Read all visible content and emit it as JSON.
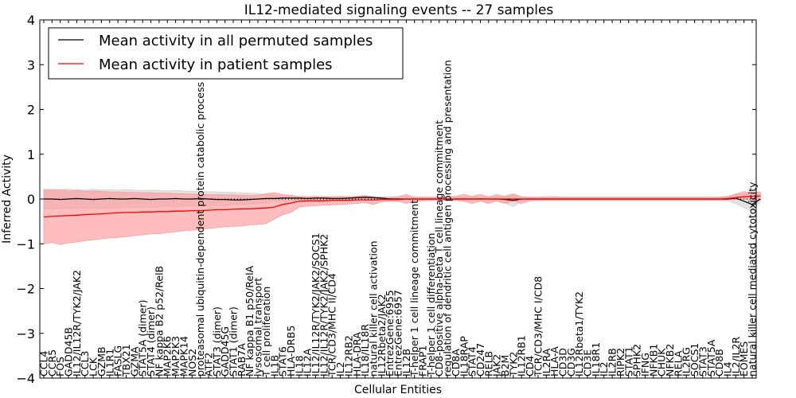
{
  "chart_data": {
    "type": "line",
    "title": "IL12-mediated signaling events -- 27 samples",
    "xlabel": "Cellular Entities",
    "ylabel": "Inferred Activity",
    "ylim": [
      -4,
      4
    ],
    "yticks": [
      -4,
      -3,
      -2,
      -1,
      0,
      1,
      2,
      3,
      4
    ],
    "ytick_labels": [
      "−4",
      "−3",
      "−2",
      "−1",
      "0",
      "1",
      "2",
      "3",
      "4"
    ],
    "grid": false,
    "legend_placement": "top-left",
    "zero_line": {
      "style": "dotted",
      "value": 0
    },
    "categories": [
      "CCL4",
      "CCR5",
      "FOS",
      "GADD45B",
      "IL12/IL12R/TYK2/JAK2",
      "CCL3",
      "LCK",
      "GZMB",
      "IL1R1",
      "FASLG",
      "TBX21",
      "GZMA",
      "STAT5A (dimer)",
      "STAT4 (dimer)",
      "NF kappa B2 p52/RelB",
      "MAP2K6",
      "MAP2K3",
      "MAPK14",
      "NOS2",
      "proteasomal ubiquitin-dependent protein catabolic process",
      "ATF2",
      "STAT3 (dimer)",
      "GADD45G",
      "STAT1 (dimer)",
      "RAB7A",
      "NF kappa B1 p50/RelA",
      "lysosomal transport",
      "T cell proliferation",
      "IL1B",
      "STAT6",
      "HLA-DRB5",
      "IL18",
      "IL12A",
      "IL12/IL12R/TYK2/JAK2/SOCS1",
      "IL12/IL12R/TYK2/JAK2/SPHK2",
      "TCR/CD3/MHC II/CD4",
      "IL2",
      "IL12RB2",
      "HLA-DRA",
      "IL18/IL18R",
      "natural killer cell activation",
      "IL12Rbeta2/JAK2",
      "EntrezGene:6955",
      "EntrezGene:6957",
      "IL12B",
      "T-helper 1 cell lineage commitment",
      "FRAP1",
      "T-helper 1 cell differentiation",
      "CD8-positive alpha-beta T cell lineage commitment",
      "regulation of dendritic cell antigen processing and presentation",
      "CD8A",
      "IL18RAP",
      "STAT4",
      "CD247",
      "RELB",
      "JAK2",
      "B2M",
      "TYK2",
      "IL12RB1",
      "CD4",
      "TCR/CD3/MHC I/CD8",
      "IL2RA",
      "HLA-A",
      "CD3D",
      "CD3G",
      "IL12Rbeta1/TYK2",
      "CD3E",
      "IL18R1",
      "IL2",
      "IL2RB",
      "RIPK2",
      "STAT1",
      "SPHK2",
      "IFNG",
      "NFKB1",
      "CHUK",
      "NFKB2",
      "RELA",
      "IL2RG",
      "SOCS1",
      "STAT3",
      "STAT5A",
      "CD8B",
      "IL4",
      "IL2/IL2R",
      "EOMES",
      "natural killer cell mediated cytotoxicity"
    ],
    "series": [
      {
        "name": "Mean activity in all permuted samples",
        "color": "#000000",
        "band_color": "#d3d3d3",
        "values": [
          0.0,
          0.0,
          -0.01,
          0.0,
          0.01,
          0.0,
          -0.01,
          0.0,
          0.01,
          0.0,
          0.0,
          0.01,
          0.0,
          -0.01,
          0.0,
          0.0,
          0.01,
          0.0,
          0.0,
          0.01,
          0.0,
          -0.01,
          -0.01,
          -0.02,
          -0.02,
          -0.01,
          0.0,
          0.01,
          0.01,
          0.02,
          0.02,
          0.02,
          0.01,
          0.02,
          0.02,
          0.01,
          0.01,
          0.02,
          0.03,
          0.04,
          0.03,
          0.02,
          0.0,
          0.0,
          0.0,
          0.0,
          0.0,
          0.0,
          0.0,
          0.0,
          0.0,
          0.0,
          0.0,
          0.0,
          0.0,
          0.0,
          -0.01,
          -0.03,
          0.0,
          0.0,
          0.0,
          0.0,
          0.0,
          0.0,
          0.0,
          0.0,
          0.0,
          0.0,
          0.0,
          0.0,
          0.0,
          0.0,
          0.0,
          0.0,
          0.0,
          0.0,
          0.0,
          0.0,
          0.0,
          0.0,
          0.0,
          0.0,
          0.0,
          0.0,
          0.02,
          -0.05,
          -0.12,
          0.0
        ],
        "band_low": [
          -0.22,
          -0.22,
          -0.22,
          -0.21,
          -0.2,
          -0.22,
          -0.2,
          -0.21,
          -0.2,
          -0.2,
          -0.19,
          -0.19,
          -0.18,
          -0.19,
          -0.18,
          -0.17,
          -0.17,
          -0.16,
          -0.16,
          -0.15,
          -0.15,
          -0.14,
          -0.14,
          -0.13,
          -0.12,
          -0.11,
          -0.1,
          -0.08,
          -0.05,
          -0.04,
          -0.04,
          -0.03,
          -0.03,
          -0.03,
          -0.03,
          -0.03,
          -0.03,
          -0.03,
          -0.03,
          -0.03,
          -0.03,
          -0.03,
          -0.03,
          -0.03,
          -0.03,
          -0.03,
          -0.03,
          -0.03,
          -0.03,
          -0.03,
          -0.03,
          -0.03,
          -0.03,
          -0.03,
          -0.03,
          -0.05,
          -0.09,
          -0.17,
          -0.05,
          -0.03,
          -0.03,
          -0.03,
          -0.03,
          -0.03,
          -0.03,
          -0.03,
          -0.03,
          -0.03,
          -0.03,
          -0.03,
          -0.03,
          -0.03,
          -0.03,
          -0.03,
          -0.03,
          -0.03,
          -0.03,
          -0.03,
          -0.03,
          -0.03,
          -0.03,
          -0.03,
          -0.03,
          -0.04,
          -0.1,
          -0.2,
          -0.28,
          -0.05
        ],
        "band_high": [
          0.22,
          0.22,
          0.21,
          0.22,
          0.21,
          0.2,
          0.22,
          0.2,
          0.21,
          0.2,
          0.21,
          0.2,
          0.19,
          0.2,
          0.19,
          0.18,
          0.19,
          0.18,
          0.17,
          0.17,
          0.16,
          0.16,
          0.15,
          0.15,
          0.14,
          0.13,
          0.12,
          0.1,
          0.08,
          0.06,
          0.06,
          0.05,
          0.05,
          0.05,
          0.05,
          0.05,
          0.05,
          0.05,
          0.06,
          0.07,
          0.06,
          0.05,
          0.04,
          0.04,
          0.04,
          0.04,
          0.04,
          0.04,
          0.04,
          0.04,
          0.04,
          0.04,
          0.04,
          0.04,
          0.04,
          0.05,
          0.08,
          0.12,
          0.06,
          0.04,
          0.04,
          0.05,
          0.06,
          0.04,
          0.04,
          0.04,
          0.04,
          0.04,
          0.04,
          0.04,
          0.04,
          0.04,
          0.04,
          0.04,
          0.04,
          0.04,
          0.04,
          0.04,
          0.04,
          0.04,
          0.04,
          0.04,
          0.04,
          0.05,
          0.12,
          0.18,
          0.12,
          0.06
        ]
      },
      {
        "name": "Mean activity in patient samples",
        "color": "#ff0000",
        "band_color": "#ff9a9a",
        "values": [
          -0.4,
          -0.39,
          -0.38,
          -0.37,
          -0.36,
          -0.35,
          -0.34,
          -0.33,
          -0.32,
          -0.31,
          -0.3,
          -0.3,
          -0.29,
          -0.29,
          -0.28,
          -0.28,
          -0.27,
          -0.27,
          -0.26,
          -0.26,
          -0.25,
          -0.24,
          -0.24,
          -0.23,
          -0.22,
          -0.22,
          -0.21,
          -0.2,
          -0.18,
          -0.12,
          -0.09,
          -0.05,
          -0.04,
          -0.04,
          -0.04,
          -0.03,
          -0.03,
          -0.03,
          -0.02,
          -0.02,
          -0.02,
          -0.01,
          -0.01,
          -0.01,
          0.0,
          0.0,
          0.0,
          0.0,
          0.0,
          0.0,
          0.0,
          0.0,
          0.0,
          0.0,
          0.0,
          0.0,
          0.0,
          0.0,
          0.0,
          0.0,
          0.0,
          0.0,
          0.0,
          0.0,
          0.0,
          0.0,
          0.0,
          0.0,
          0.0,
          0.0,
          0.0,
          0.0,
          0.0,
          0.0,
          0.0,
          0.0,
          0.0,
          0.0,
          0.0,
          0.0,
          0.0,
          0.0,
          0.0,
          0.01,
          0.03,
          0.05,
          0.06,
          0.07
        ],
        "band_low": [
          -1.0,
          -0.97,
          -1.02,
          -0.98,
          -0.96,
          -0.93,
          -0.91,
          -0.89,
          -0.87,
          -0.86,
          -0.84,
          -0.82,
          -0.8,
          -0.78,
          -0.77,
          -0.75,
          -0.73,
          -0.71,
          -0.7,
          -0.68,
          -0.66,
          -0.64,
          -0.62,
          -0.61,
          -0.6,
          -0.58,
          -0.57,
          -0.55,
          -0.45,
          -0.35,
          -0.3,
          -0.18,
          -0.16,
          -0.15,
          -0.14,
          -0.13,
          -0.12,
          -0.11,
          -0.1,
          -0.08,
          -0.12,
          -0.06,
          -0.05,
          -0.05,
          -0.1,
          -0.05,
          -0.04,
          -0.03,
          -0.03,
          -0.03,
          -0.03,
          -0.05,
          -0.1,
          -0.05,
          -0.1,
          -0.04,
          -0.1,
          -0.05,
          -0.1,
          -0.04,
          -0.03,
          -0.03,
          -0.03,
          -0.03,
          -0.03,
          -0.03,
          -0.03,
          -0.03,
          -0.03,
          -0.03,
          -0.03,
          -0.03,
          -0.03,
          -0.03,
          -0.03,
          -0.03,
          -0.03,
          -0.03,
          -0.03,
          -0.03,
          -0.03,
          -0.03,
          -0.03,
          -0.02,
          -0.01,
          0.0,
          -0.02,
          -0.02
        ],
        "band_high": [
          0.2,
          0.19,
          0.21,
          0.18,
          0.19,
          0.17,
          0.18,
          0.17,
          0.16,
          0.16,
          0.15,
          0.15,
          0.14,
          0.14,
          0.13,
          0.13,
          0.12,
          0.12,
          0.11,
          0.11,
          0.1,
          0.1,
          0.09,
          0.09,
          0.08,
          0.08,
          0.08,
          0.12,
          0.14,
          0.1,
          0.08,
          0.06,
          0.05,
          0.06,
          0.05,
          0.05,
          0.06,
          0.05,
          0.06,
          0.08,
          0.04,
          0.03,
          0.04,
          0.05,
          0.1,
          0.04,
          0.04,
          0.04,
          0.04,
          0.05,
          0.06,
          0.1,
          0.06,
          0.1,
          0.05,
          0.1,
          0.05,
          0.1,
          0.04,
          0.04,
          0.04,
          0.04,
          0.04,
          0.04,
          0.04,
          0.04,
          0.04,
          0.04,
          0.04,
          0.04,
          0.04,
          0.04,
          0.04,
          0.04,
          0.04,
          0.04,
          0.04,
          0.04,
          0.04,
          0.04,
          0.04,
          0.04,
          0.04,
          0.06,
          0.1,
          0.14,
          0.16,
          0.15
        ]
      }
    ]
  }
}
